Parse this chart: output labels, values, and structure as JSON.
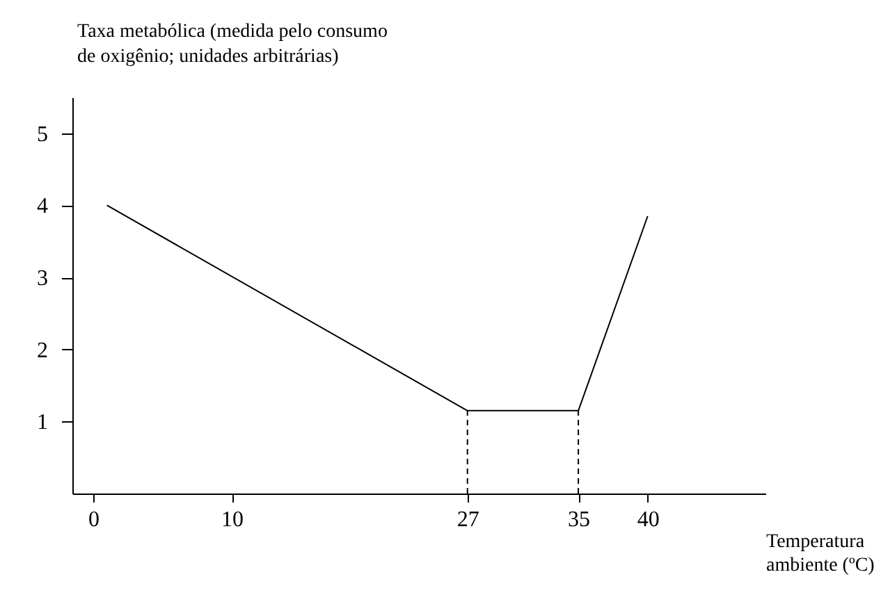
{
  "chart_data": {
    "type": "line",
    "xlabel": "Temperatura ambiente (ºC)",
    "ylabel": "Taxa metabólica (medida pelo consumo de oxigênio; unidades arbitrárias)",
    "xlim": [
      -1.5,
      48.5
    ],
    "xticks": [
      0,
      10,
      27,
      35,
      40
    ],
    "ylim": [
      0,
      5.5
    ],
    "yticks": [
      1,
      2,
      3,
      4,
      5
    ],
    "grid": false,
    "marker": "none",
    "series": [
      {
        "color": "#000000",
        "x": [
          1,
          27,
          35,
          40
        ],
        "values": [
          4,
          1.15,
          1.15,
          3.85
        ],
        "line_style": "solid"
      },
      {
        "color": "#000000",
        "x": [
          27,
          27
        ],
        "values": [
          0,
          1.15
        ],
        "line_style": "dashed"
      },
      {
        "color": "#000000",
        "x": [
          35,
          35
        ],
        "values": [
          0,
          1.15
        ],
        "line_style": "dashed"
      }
    ]
  }
}
